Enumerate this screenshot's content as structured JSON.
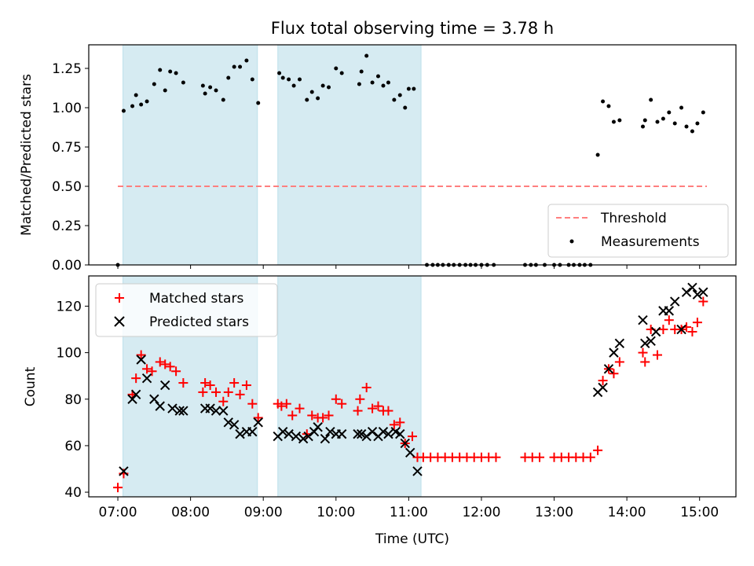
{
  "chart_data": [
    {
      "type": "scatter",
      "title": "Flux total observing time = 3.78 h",
      "ylabel": "Matched/Predicted stars",
      "xlabel": "",
      "xlim": [
        6.6,
        15.5
      ],
      "ylim": [
        0,
        1.4
      ],
      "x_ticks": [
        7,
        8,
        9,
        10,
        11,
        12,
        13,
        14,
        15
      ],
      "y_ticks": [
        0.0,
        0.25,
        0.5,
        0.75,
        1.0,
        1.25
      ],
      "y_tick_labels": [
        "0.00",
        "0.25",
        "0.50",
        "0.75",
        "1.00",
        "1.25"
      ],
      "grid": false,
      "legend_position": "lower-right",
      "shaded_intervals": [
        [
          7.07,
          8.92
        ],
        [
          9.2,
          11.17
        ]
      ],
      "shade_color": "#add8e6",
      "threshold": {
        "name": "Threshold",
        "value": 0.5,
        "x_range": [
          7.0,
          15.1
        ],
        "color": "#ff7f7f"
      },
      "measurements": {
        "name": "Measurements",
        "color": "#000000",
        "points": [
          [
            7.0,
            0.0
          ],
          [
            7.08,
            0.98
          ],
          [
            7.2,
            1.01
          ],
          [
            7.25,
            1.08
          ],
          [
            7.32,
            1.02
          ],
          [
            7.4,
            1.04
          ],
          [
            7.5,
            1.15
          ],
          [
            7.58,
            1.24
          ],
          [
            7.65,
            1.11
          ],
          [
            7.72,
            1.23
          ],
          [
            7.8,
            1.22
          ],
          [
            7.9,
            1.16
          ],
          [
            8.17,
            1.14
          ],
          [
            8.2,
            1.09
          ],
          [
            8.27,
            1.13
          ],
          [
            8.35,
            1.11
          ],
          [
            8.45,
            1.05
          ],
          [
            8.52,
            1.19
          ],
          [
            8.6,
            1.26
          ],
          [
            8.68,
            1.26
          ],
          [
            8.77,
            1.3
          ],
          [
            8.85,
            1.18
          ],
          [
            8.93,
            1.03
          ],
          [
            9.22,
            1.22
          ],
          [
            9.27,
            1.19
          ],
          [
            9.35,
            1.18
          ],
          [
            9.42,
            1.14
          ],
          [
            9.5,
            1.18
          ],
          [
            9.6,
            1.05
          ],
          [
            9.67,
            1.1
          ],
          [
            9.75,
            1.06
          ],
          [
            9.82,
            1.14
          ],
          [
            9.9,
            1.13
          ],
          [
            10.0,
            1.25
          ],
          [
            10.08,
            1.22
          ],
          [
            10.32,
            1.15
          ],
          [
            10.35,
            1.23
          ],
          [
            10.42,
            1.33
          ],
          [
            10.5,
            1.16
          ],
          [
            10.58,
            1.2
          ],
          [
            10.65,
            1.14
          ],
          [
            10.72,
            1.16
          ],
          [
            10.8,
            1.05
          ],
          [
            10.88,
            1.08
          ],
          [
            10.95,
            1.0
          ],
          [
            11.0,
            1.12
          ],
          [
            11.07,
            1.12
          ],
          [
            11.25,
            0.0
          ],
          [
            11.33,
            0.0
          ],
          [
            11.4,
            0.0
          ],
          [
            11.47,
            0.0
          ],
          [
            11.55,
            0.0
          ],
          [
            11.62,
            0.0
          ],
          [
            11.7,
            0.0
          ],
          [
            11.78,
            0.0
          ],
          [
            11.85,
            0.0
          ],
          [
            11.92,
            0.0
          ],
          [
            12.0,
            0.0
          ],
          [
            12.08,
            0.0
          ],
          [
            12.17,
            0.0
          ],
          [
            12.6,
            0.0
          ],
          [
            12.68,
            0.0
          ],
          [
            12.75,
            0.0
          ],
          [
            12.87,
            0.0
          ],
          [
            13.0,
            0.0
          ],
          [
            13.08,
            0.0
          ],
          [
            13.2,
            0.0
          ],
          [
            13.27,
            0.0
          ],
          [
            13.35,
            0.0
          ],
          [
            13.42,
            0.0
          ],
          [
            13.5,
            0.0
          ],
          [
            13.6,
            0.7
          ],
          [
            13.67,
            1.04
          ],
          [
            13.75,
            1.01
          ],
          [
            13.82,
            0.91
          ],
          [
            13.9,
            0.92
          ],
          [
            14.22,
            0.88
          ],
          [
            14.25,
            0.92
          ],
          [
            14.33,
            1.05
          ],
          [
            14.42,
            0.91
          ],
          [
            14.5,
            0.93
          ],
          [
            14.58,
            0.97
          ],
          [
            14.66,
            0.9
          ],
          [
            14.75,
            1.0
          ],
          [
            14.82,
            0.88
          ],
          [
            14.9,
            0.85
          ],
          [
            14.97,
            0.9
          ],
          [
            15.05,
            0.97
          ]
        ]
      }
    },
    {
      "type": "scatter",
      "xlabel": "Time (UTC)",
      "ylabel": "Count",
      "xlim": [
        6.6,
        15.5
      ],
      "ylim": [
        38,
        133
      ],
      "x_ticks": [
        7,
        8,
        9,
        10,
        11,
        12,
        13,
        14,
        15
      ],
      "x_tick_labels": [
        "07:00",
        "08:00",
        "09:00",
        "10:00",
        "11:00",
        "12:00",
        "13:00",
        "14:00",
        "15:00"
      ],
      "y_ticks": [
        40,
        60,
        80,
        100,
        120
      ],
      "y_tick_labels": [
        "40",
        "60",
        "80",
        "100",
        "120"
      ],
      "grid": false,
      "legend_position": "upper-left",
      "shaded_intervals": [
        [
          7.07,
          8.92
        ],
        [
          9.2,
          11.17
        ]
      ],
      "shade_color": "#add8e6",
      "series": [
        {
          "name": "Matched stars",
          "marker": "+",
          "color": "#ff0000",
          "points": [
            [
              7.0,
              42
            ],
            [
              7.08,
              48
            ],
            [
              7.2,
              82
            ],
            [
              7.25,
              89
            ],
            [
              7.32,
              99
            ],
            [
              7.4,
              93
            ],
            [
              7.47,
              92
            ],
            [
              7.58,
              96
            ],
            [
              7.65,
              95
            ],
            [
              7.72,
              94
            ],
            [
              7.8,
              92
            ],
            [
              7.9,
              87
            ],
            [
              8.17,
              83
            ],
            [
              8.2,
              87
            ],
            [
              8.27,
              86
            ],
            [
              8.35,
              83
            ],
            [
              8.45,
              79
            ],
            [
              8.52,
              83
            ],
            [
              8.6,
              87
            ],
            [
              8.68,
              82
            ],
            [
              8.77,
              86
            ],
            [
              8.85,
              78
            ],
            [
              8.93,
              72
            ],
            [
              9.2,
              78
            ],
            [
              9.25,
              77
            ],
            [
              9.32,
              78
            ],
            [
              9.4,
              73
            ],
            [
              9.5,
              76
            ],
            [
              9.6,
              65
            ],
            [
              9.67,
              73
            ],
            [
              9.75,
              72
            ],
            [
              9.82,
              72
            ],
            [
              9.9,
              73
            ],
            [
              10.0,
              80
            ],
            [
              10.08,
              78
            ],
            [
              10.3,
              75
            ],
            [
              10.33,
              80
            ],
            [
              10.42,
              85
            ],
            [
              10.5,
              76
            ],
            [
              10.58,
              77
            ],
            [
              10.65,
              75
            ],
            [
              10.72,
              75
            ],
            [
              10.8,
              69
            ],
            [
              10.88,
              70
            ],
            [
              10.95,
              61
            ],
            [
              11.05,
              64
            ],
            [
              11.12,
              55
            ],
            [
              11.2,
              55
            ],
            [
              11.3,
              55
            ],
            [
              11.4,
              55
            ],
            [
              11.5,
              55
            ],
            [
              11.6,
              55
            ],
            [
              11.7,
              55
            ],
            [
              11.8,
              55
            ],
            [
              11.9,
              55
            ],
            [
              12.0,
              55
            ],
            [
              12.1,
              55
            ],
            [
              12.2,
              55
            ],
            [
              12.6,
              55
            ],
            [
              12.7,
              55
            ],
            [
              12.8,
              55
            ],
            [
              13.0,
              55
            ],
            [
              13.1,
              55
            ],
            [
              13.2,
              55
            ],
            [
              13.3,
              55
            ],
            [
              13.4,
              55
            ],
            [
              13.5,
              55
            ],
            [
              13.6,
              58
            ],
            [
              13.67,
              88
            ],
            [
              13.75,
              93
            ],
            [
              13.82,
              91
            ],
            [
              13.9,
              96
            ],
            [
              14.22,
              100
            ],
            [
              14.25,
              96
            ],
            [
              14.33,
              110
            ],
            [
              14.42,
              99
            ],
            [
              14.5,
              110
            ],
            [
              14.58,
              114
            ],
            [
              14.66,
              110
            ],
            [
              14.75,
              110
            ],
            [
              14.82,
              111
            ],
            [
              14.9,
              109
            ],
            [
              14.97,
              113
            ],
            [
              15.05,
              122
            ]
          ]
        },
        {
          "name": "Predicted stars",
          "marker": "x",
          "color": "#000000",
          "points": [
            [
              7.08,
              49
            ],
            [
              7.2,
              80
            ],
            [
              7.25,
              82
            ],
            [
              7.32,
              97
            ],
            [
              7.4,
              89
            ],
            [
              7.5,
              80
            ],
            [
              7.58,
              77
            ],
            [
              7.65,
              86
            ],
            [
              7.75,
              76
            ],
            [
              7.85,
              75
            ],
            [
              7.9,
              75
            ],
            [
              8.2,
              76
            ],
            [
              8.27,
              76
            ],
            [
              8.35,
              75
            ],
            [
              8.45,
              75
            ],
            [
              8.52,
              70
            ],
            [
              8.6,
              69
            ],
            [
              8.68,
              65
            ],
            [
              8.77,
              66
            ],
            [
              8.85,
              66
            ],
            [
              8.93,
              70
            ],
            [
              9.2,
              64
            ],
            [
              9.27,
              66
            ],
            [
              9.35,
              65
            ],
            [
              9.45,
              64
            ],
            [
              9.55,
              63
            ],
            [
              9.62,
              64
            ],
            [
              9.7,
              66
            ],
            [
              9.75,
              68
            ],
            [
              9.85,
              63
            ],
            [
              9.92,
              66
            ],
            [
              10.0,
              65
            ],
            [
              10.08,
              65
            ],
            [
              10.3,
              65
            ],
            [
              10.35,
              65
            ],
            [
              10.42,
              64
            ],
            [
              10.5,
              66
            ],
            [
              10.58,
              64
            ],
            [
              10.65,
              66
            ],
            [
              10.72,
              65
            ],
            [
              10.82,
              66
            ],
            [
              10.88,
              65
            ],
            [
              10.95,
              61
            ],
            [
              11.02,
              57
            ],
            [
              11.12,
              49
            ],
            [
              13.6,
              83
            ],
            [
              13.67,
              85
            ],
            [
              13.75,
              93
            ],
            [
              13.82,
              100
            ],
            [
              13.9,
              104
            ],
            [
              14.22,
              114
            ],
            [
              14.25,
              104
            ],
            [
              14.33,
              105
            ],
            [
              14.4,
              109
            ],
            [
              14.5,
              118
            ],
            [
              14.58,
              118
            ],
            [
              14.66,
              122
            ],
            [
              14.75,
              110
            ],
            [
              14.82,
              126
            ],
            [
              14.9,
              128
            ],
            [
              14.97,
              125
            ],
            [
              15.05,
              126
            ]
          ]
        }
      ]
    }
  ]
}
